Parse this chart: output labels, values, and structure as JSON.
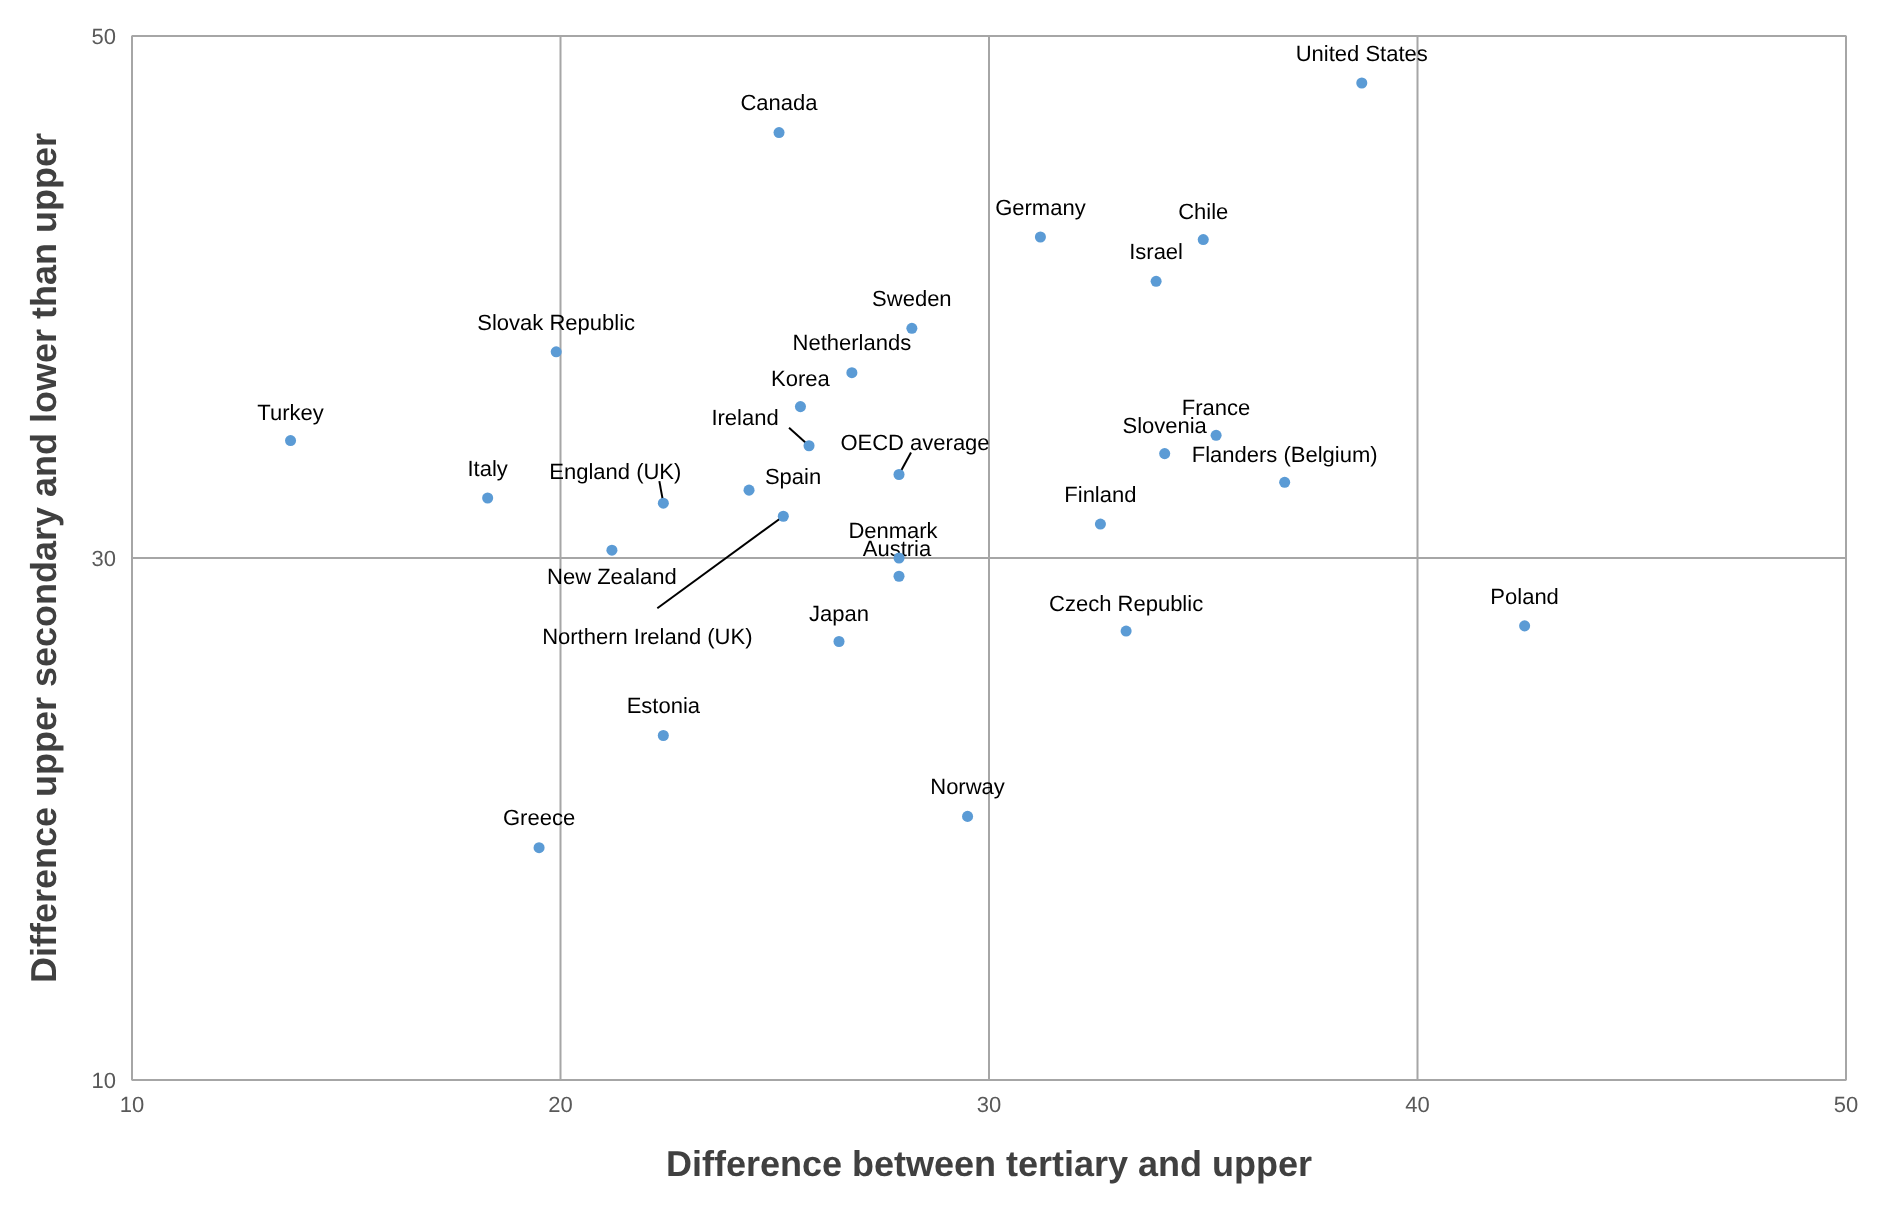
{
  "chart_data": {
    "type": "scatter",
    "xlabel": "Difference between tertiary and upper",
    "ylabel": "Difference upper secondary and lower than upper",
    "xlim": [
      10,
      50
    ],
    "xticks": [
      10,
      20,
      30,
      40,
      50
    ],
    "ylim": [
      10,
      50
    ],
    "yticks": [
      10,
      30,
      50
    ],
    "grid": true,
    "marker": "circle",
    "series": [
      {
        "color": "#5b9bd5",
        "x": [
          38.7,
          25.1,
          31.2,
          35.0,
          33.9,
          28.2,
          19.9,
          26.8,
          25.6,
          13.7,
          35.3,
          25.8,
          34.1,
          27.9,
          36.9,
          18.3,
          22.4,
          24.4,
          25.2,
          32.6,
          21.2,
          27.9,
          27.9,
          33.2,
          42.5,
          26.5,
          22.4,
          29.5,
          19.5
        ],
        "values": [
          48.2,
          46.3,
          42.3,
          42.2,
          40.6,
          38.8,
          37.9,
          37.1,
          35.8,
          34.5,
          34.7,
          34.3,
          34.0,
          33.2,
          32.9,
          32.3,
          32.1,
          32.6,
          31.6,
          31.3,
          30.3,
          30.0,
          29.3,
          27.2,
          27.4,
          26.8,
          23.2,
          20.1,
          18.9
        ]
      }
    ],
    "annotations": [
      {
        "text": "United States",
        "x": 38.7,
        "y": 48.2
      },
      {
        "text": "Canada",
        "x": 25.1,
        "y": 46.3
      },
      {
        "text": "Germany",
        "x": 31.2,
        "y": 42.3
      },
      {
        "text": "Chile",
        "x": 35.0,
        "y": 42.2
      },
      {
        "text": "Israel",
        "x": 33.9,
        "y": 40.6
      },
      {
        "text": "Sweden",
        "x": 28.2,
        "y": 38.8
      },
      {
        "text": "Slovak Republic",
        "x": 19.9,
        "y": 37.9
      },
      {
        "text": "Netherlands",
        "x": 26.8,
        "y": 37.1
      },
      {
        "text": "Korea",
        "x": 25.6,
        "y": 35.8
      },
      {
        "text": "Turkey",
        "x": 13.7,
        "y": 34.5
      },
      {
        "text": "France",
        "x": 35.3,
        "y": 34.7
      },
      {
        "text": "Ireland",
        "x": 25.8,
        "y": 34.3
      },
      {
        "text": "Slovenia",
        "x": 34.1,
        "y": 34.0
      },
      {
        "text": "OECD average",
        "x": 27.9,
        "y": 33.2
      },
      {
        "text": "Flanders (Belgium)",
        "x": 36.9,
        "y": 32.9
      },
      {
        "text": "Italy",
        "x": 18.3,
        "y": 32.3
      },
      {
        "text": "England (UK)",
        "x": 22.4,
        "y": 32.1
      },
      {
        "text": "Spain",
        "x": 24.4,
        "y": 32.6
      },
      {
        "text": "Northern Ireland (UK)",
        "x": 25.2,
        "y": 31.6
      },
      {
        "text": "Finland",
        "x": 32.6,
        "y": 31.3
      },
      {
        "text": "New Zealand",
        "x": 21.2,
        "y": 30.3
      },
      {
        "text": "Denmark",
        "x": 27.9,
        "y": 30.0
      },
      {
        "text": "Austria",
        "x": 27.9,
        "y": 29.3
      },
      {
        "text": "Czech Republic",
        "x": 33.2,
        "y": 27.2
      },
      {
        "text": "Poland",
        "x": 42.5,
        "y": 27.4
      },
      {
        "text": "Japan",
        "x": 26.5,
        "y": 26.8
      },
      {
        "text": "Estonia",
        "x": 22.4,
        "y": 23.2
      },
      {
        "text": "Norway",
        "x": 29.5,
        "y": 20.1
      },
      {
        "text": "Greece",
        "x": 19.5,
        "y": 18.9
      }
    ]
  }
}
